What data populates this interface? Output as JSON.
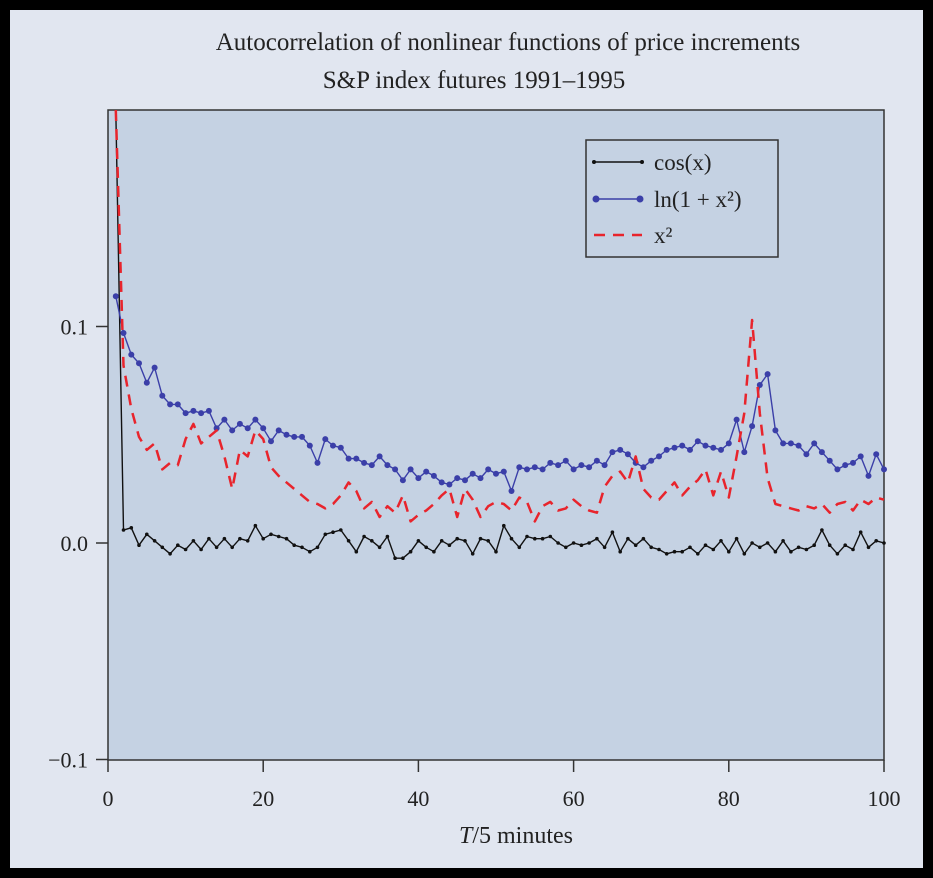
{
  "chart_data": {
    "type": "line",
    "title": "Autocorrelation of nonlinear functions of price increments",
    "subtitle": "S&P index futures 1991–1995",
    "xlabel_italic": "T",
    "xlabel_rest": "/5 minutes",
    "ylabel": "",
    "xlim": [
      0,
      100
    ],
    "ylim": [
      -0.1,
      0.2
    ],
    "xticks": [
      0,
      20,
      40,
      60,
      80,
      100
    ],
    "xtick_labels": [
      "0",
      "20",
      "40",
      "60",
      "80",
      "100"
    ],
    "yticks": [
      -0.1,
      0.0,
      0.1
    ],
    "ytick_labels": [
      "−0.1",
      "0.0",
      "0.1"
    ],
    "grid": false,
    "legend_position": "top-right",
    "legend": {
      "cos": "cos(x)",
      "ln": "ln(1 + x²)",
      "sq": "x²"
    },
    "colors": {
      "plot_background": "#c5d2e3",
      "frame_background": "#e1e6f0",
      "cos": "#111111",
      "ln": "#3b3fa8",
      "sq": "#e8242c"
    },
    "series": [
      {
        "name": "cos(x)",
        "key": "cos",
        "style": "line-with-small-markers",
        "x": [
          0,
          1,
          2,
          3,
          4,
          5,
          6,
          7,
          8,
          9,
          10,
          11,
          12,
          13,
          14,
          15,
          16,
          17,
          18,
          19,
          20,
          21,
          22,
          23,
          24,
          25,
          26,
          27,
          28,
          29,
          30,
          31,
          32,
          33,
          34,
          35,
          36,
          37,
          38,
          39,
          40,
          41,
          42,
          43,
          44,
          45,
          46,
          47,
          48,
          49,
          50,
          51,
          52,
          53,
          54,
          55,
          56,
          57,
          58,
          59,
          60,
          61,
          62,
          63,
          64,
          65,
          66,
          67,
          68,
          69,
          70,
          71,
          72,
          73,
          74,
          75,
          76,
          77,
          78,
          79,
          80,
          81,
          82,
          83,
          84,
          85,
          86,
          87,
          88,
          89,
          90,
          91,
          92,
          93,
          94,
          95,
          96,
          97,
          98,
          99
        ],
        "values": [
          0.2,
          0.006,
          0.007,
          -0.001,
          0.004,
          0.001,
          -0.002,
          -0.005,
          -0.001,
          -0.003,
          0.001,
          -0.003,
          0.002,
          -0.002,
          0.002,
          -0.002,
          0.002,
          0.001,
          0.008,
          0.002,
          0.004,
          0.003,
          0.002,
          -0.001,
          -0.002,
          -0.004,
          -0.002,
          0.004,
          0.005,
          0.006,
          0.001,
          -0.004,
          0.003,
          0.001,
          -0.002,
          0.003,
          -0.007,
          -0.007,
          -0.004,
          0.001,
          -0.002,
          -0.004,
          0.001,
          -0.001,
          0.002,
          0.001,
          -0.005,
          0.002,
          0.001,
          -0.004,
          0.008,
          0.002,
          -0.002,
          0.003,
          0.002,
          0.002,
          0.003,
          0.0,
          -0.002,
          0.0,
          -0.001,
          0.0,
          0.002,
          -0.002,
          0.005,
          -0.004,
          0.002,
          -0.001,
          0.002,
          -0.002,
          -0.003,
          -0.005,
          -0.004,
          -0.004,
          -0.002,
          -0.005,
          -0.001,
          -0.003,
          0.001,
          -0.004,
          0.002,
          -0.005,
          0.0,
          -0.002,
          0.0,
          -0.004,
          0.001,
          -0.004,
          -0.002,
          -0.003,
          -0.001,
          0.006,
          -0.001,
          -0.005,
          -0.001,
          -0.003,
          0.005,
          -0.002,
          0.001,
          0.0
        ]
      },
      {
        "name": "ln(1 + x²)",
        "key": "ln",
        "style": "line-with-circle-markers",
        "x": [
          0,
          1,
          2,
          3,
          4,
          5,
          6,
          7,
          8,
          9,
          10,
          11,
          12,
          13,
          14,
          15,
          16,
          17,
          18,
          19,
          20,
          21,
          22,
          23,
          24,
          25,
          26,
          27,
          28,
          29,
          30,
          31,
          32,
          33,
          34,
          35,
          36,
          37,
          38,
          39,
          40,
          41,
          42,
          43,
          44,
          45,
          46,
          47,
          48,
          49,
          50,
          51,
          52,
          53,
          54,
          55,
          56,
          57,
          58,
          59,
          60,
          61,
          62,
          63,
          64,
          65,
          66,
          67,
          68,
          69,
          70,
          71,
          72,
          73,
          74,
          75,
          76,
          77,
          78,
          79,
          80,
          81,
          82,
          83,
          84,
          85,
          86,
          87,
          88,
          89,
          90,
          91,
          92,
          93,
          94,
          95,
          96,
          97,
          98,
          99
        ],
        "values": [
          0.114,
          0.097,
          0.087,
          0.083,
          0.074,
          0.081,
          0.068,
          0.064,
          0.064,
          0.06,
          0.061,
          0.06,
          0.061,
          0.053,
          0.057,
          0.052,
          0.055,
          0.053,
          0.057,
          0.053,
          0.047,
          0.052,
          0.05,
          0.049,
          0.049,
          0.045,
          0.037,
          0.048,
          0.045,
          0.044,
          0.039,
          0.039,
          0.037,
          0.036,
          0.04,
          0.036,
          0.034,
          0.029,
          0.034,
          0.03,
          0.033,
          0.031,
          0.028,
          0.027,
          0.03,
          0.029,
          0.032,
          0.03,
          0.034,
          0.032,
          0.033,
          0.024,
          0.035,
          0.034,
          0.035,
          0.034,
          0.037,
          0.036,
          0.038,
          0.034,
          0.036,
          0.035,
          0.038,
          0.036,
          0.042,
          0.043,
          0.041,
          0.037,
          0.035,
          0.038,
          0.04,
          0.043,
          0.044,
          0.045,
          0.043,
          0.047,
          0.045,
          0.044,
          0.043,
          0.046,
          0.057,
          0.042,
          0.054,
          0.073,
          0.078,
          0.052,
          0.046,
          0.046,
          0.045,
          0.041,
          0.046,
          0.042,
          0.038,
          0.034,
          0.036,
          0.037,
          0.04,
          0.031,
          0.041,
          0.034
        ]
      },
      {
        "name": "x²",
        "key": "sq",
        "style": "dashed-line",
        "x": [
          0,
          1,
          2,
          3,
          4,
          5,
          6,
          7,
          8,
          9,
          10,
          11,
          12,
          13,
          14,
          15,
          16,
          17,
          18,
          19,
          20,
          21,
          22,
          23,
          24,
          25,
          26,
          27,
          28,
          29,
          30,
          31,
          32,
          33,
          34,
          35,
          36,
          37,
          38,
          39,
          40,
          41,
          42,
          43,
          44,
          45,
          46,
          47,
          48,
          49,
          50,
          51,
          52,
          53,
          54,
          55,
          56,
          57,
          58,
          59,
          60,
          61,
          62,
          63,
          64,
          65,
          66,
          67,
          68,
          69,
          70,
          71,
          72,
          73,
          74,
          75,
          76,
          77,
          78,
          79,
          80,
          81,
          82,
          83,
          84,
          85,
          86,
          87,
          88,
          89,
          90,
          91,
          92,
          93,
          94,
          95,
          96,
          97,
          98,
          99
        ],
        "values": [
          0.2,
          0.082,
          0.062,
          0.049,
          0.043,
          0.046,
          0.034,
          0.037,
          0.036,
          0.048,
          0.055,
          0.046,
          0.049,
          0.052,
          0.04,
          0.025,
          0.043,
          0.04,
          0.052,
          0.048,
          0.035,
          0.031,
          0.028,
          0.025,
          0.022,
          0.019,
          0.018,
          0.016,
          0.018,
          0.022,
          0.028,
          0.024,
          0.016,
          0.019,
          0.012,
          0.017,
          0.014,
          0.022,
          0.01,
          0.013,
          0.015,
          0.018,
          0.022,
          0.025,
          0.012,
          0.025,
          0.02,
          0.012,
          0.017,
          0.019,
          0.018,
          0.015,
          0.021,
          0.019,
          0.01,
          0.017,
          0.019,
          0.015,
          0.016,
          0.02,
          0.017,
          0.015,
          0.014,
          0.026,
          0.031,
          0.033,
          0.028,
          0.04,
          0.025,
          0.021,
          0.02,
          0.024,
          0.028,
          0.022,
          0.026,
          0.029,
          0.034,
          0.022,
          0.033,
          0.021,
          0.04,
          0.06,
          0.103,
          0.06,
          0.03,
          0.018,
          0.017,
          0.016,
          0.015,
          0.017,
          0.016,
          0.018,
          0.014,
          0.018,
          0.019,
          0.015,
          0.02,
          0.018,
          0.021,
          0.02
        ]
      }
    ]
  }
}
